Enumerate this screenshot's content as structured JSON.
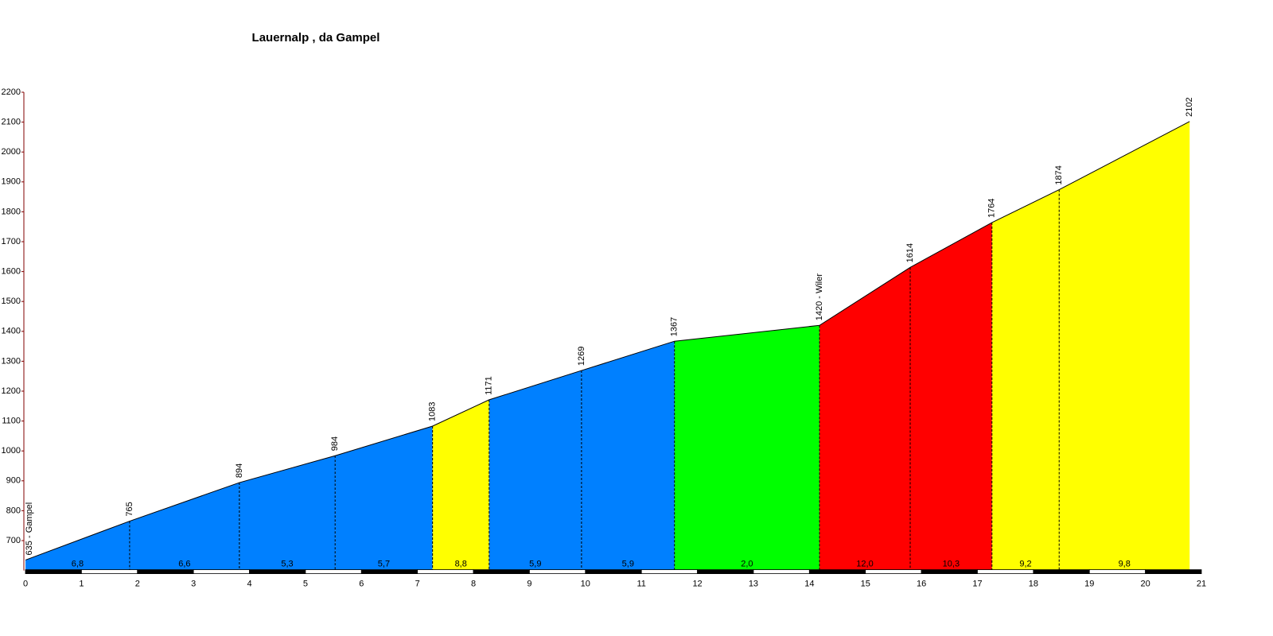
{
  "chart_data": {
    "type": "area",
    "title": "Lauernalp , da Gampel",
    "x": [
      0,
      1.86,
      3.82,
      5.53,
      7.27,
      8.28,
      9.93,
      11.59,
      14.18,
      15.8,
      17.26,
      18.46,
      20.79
    ],
    "values": [
      635,
      765,
      894,
      984,
      1083,
      1171,
      1269,
      1367,
      1420,
      1614,
      1764,
      1874,
      2102
    ],
    "value_labels": [
      "635 - Gampel",
      "765",
      "894",
      "984",
      "1083",
      "1171",
      "1269",
      "1367",
      "1420 - Wiler",
      "1614",
      "1764",
      "1874",
      "2102"
    ],
    "segments": {
      "colors": [
        "#0080ff",
        "#0080ff",
        "#0080ff",
        "#0080ff",
        "#ffff00",
        "#0080ff",
        "#0080ff",
        "#00ff00",
        "#ff0000",
        "#ff0000",
        "#ffff00",
        "#ffff00"
      ],
      "values": [
        6.8,
        6.6,
        5.3,
        5.7,
        8.8,
        5.9,
        5.9,
        2.0,
        12.0,
        10.3,
        9.2,
        9.8
      ],
      "value_labels": [
        "6,8",
        "6,6",
        "5,3",
        "5,7",
        "8,8",
        "5,9",
        "5,9",
        "2,0",
        "12,0",
        "10,3",
        "9,2",
        "9,8"
      ]
    },
    "xlim": [
      0,
      21
    ],
    "xticks": [
      0,
      1,
      2,
      3,
      4,
      5,
      6,
      7,
      8,
      9,
      10,
      11,
      12,
      13,
      14,
      15,
      16,
      17,
      18,
      19,
      20,
      21
    ],
    "ylim": [
      600,
      2200
    ],
    "yticks": [
      700,
      800,
      900,
      1000,
      1100,
      1200,
      1300,
      1400,
      1500,
      1600,
      1700,
      1800,
      1900,
      2000,
      2100,
      2200
    ]
  }
}
